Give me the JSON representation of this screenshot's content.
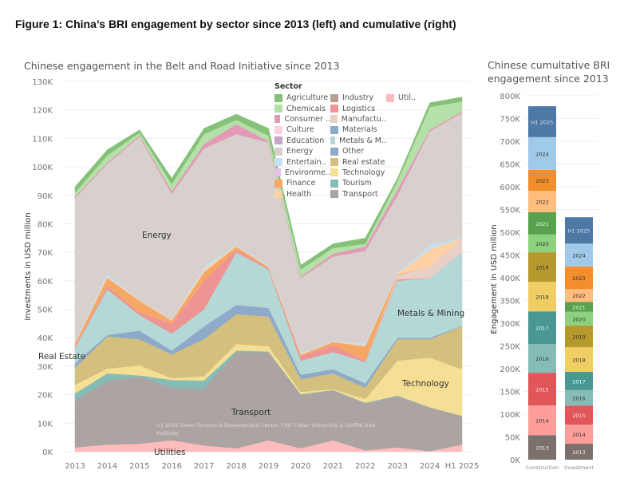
{
  "figure_title": "Figure 1: China’s BRI engagement by sector since 2013 (left) and cumulative (right)",
  "chart_data": [
    {
      "type": "area",
      "title": "Chinese engagement in the Belt and Road Initiative since 2013",
      "ylabel": "Investments in USD million",
      "xlabel": "",
      "x": [
        "2013",
        "2014",
        "2015",
        "2016",
        "2017",
        "2018",
        "2019",
        "2020",
        "2021",
        "2022",
        "2023",
        "2024",
        "H1 2025"
      ],
      "yticks": [
        "0K",
        "10K",
        "20K",
        "30K",
        "40K",
        "50K",
        "60K",
        "70K",
        "80K",
        "90K",
        "100K",
        "110K",
        "120K",
        "130K"
      ],
      "ylim": [
        0,
        130
      ],
      "unit": "thousand USD million",
      "legend_title": "Sector",
      "legend_position": "top-right",
      "series": [
        {
          "name": "Utilities",
          "color": "#ffbcbc",
          "values": [
            1.5,
            2.5,
            2.8,
            4,
            2.2,
            1.2,
            4,
            1.2,
            4,
            0.5,
            1.5,
            0.2,
            2.5
          ]
        },
        {
          "name": "Transport",
          "color": "#aba4a2",
          "values": [
            16.5,
            22.3,
            23.7,
            18.5,
            19.8,
            33.8,
            31,
            18.8,
            17.5,
            16.5,
            18,
            15.3,
            10
          ]
        },
        {
          "name": "Tourism",
          "color": "#86bcb6",
          "values": [
            2.5,
            2.7,
            0.3,
            2.7,
            3,
            0.5,
            0.2,
            0.2,
            0.2,
            0.2,
            0.2,
            0.1,
            0.1
          ]
        },
        {
          "name": "Technology",
          "color": "#f5df95",
          "values": [
            3,
            1.7,
            3.5,
            0.6,
            1.5,
            2.3,
            1.8,
            0.8,
            0.3,
            1.3,
            12.3,
            17.4,
            16.4
          ]
        },
        {
          "name": "Real estate",
          "color": "#d4c07e",
          "values": [
            6,
            11.3,
            9.2,
            8.4,
            13,
            10.5,
            10.5,
            4.5,
            5.5,
            4,
            7.5,
            6.5,
            15
          ]
        },
        {
          "name": "Other",
          "color": "#8fa9cb",
          "values": [
            1.5,
            0.5,
            3,
            1.3,
            4.5,
            3.2,
            3,
            1.5,
            1.5,
            1.5,
            0.5,
            0.5,
            0.2
          ]
        },
        {
          "name": "Metals & Mining",
          "color": "#b4d8d5",
          "values": [
            5.5,
            16,
            5.5,
            6,
            6,
            18.5,
            13.5,
            5,
            6,
            7.5,
            20,
            21,
            25.8
          ]
        },
        {
          "name": "Logistics",
          "color": "#ee9494",
          "values": [
            0.5,
            1,
            1,
            3.5,
            10,
            1,
            0.5,
            1.5,
            2.5,
            0.5,
            0.5,
            0,
            0
          ]
        },
        {
          "name": "Manufacturing",
          "color": "#e8d0c7",
          "values": [
            0,
            0,
            0,
            0,
            0,
            0,
            0,
            0,
            0,
            0,
            1.5,
            4,
            5
          ]
        },
        {
          "name": "Finance",
          "color": "#f5a866",
          "values": [
            1,
            3,
            4,
            1,
            3,
            1,
            0.3,
            0.5,
            1,
            5,
            0.2,
            0,
            0
          ]
        },
        {
          "name": "Health",
          "color": "#ffd1a4",
          "values": [
            0.2,
            0.5,
            0.3,
            0.3,
            1,
            0.3,
            0.2,
            0.2,
            0.2,
            0.3,
            0.3,
            6,
            0
          ]
        },
        {
          "name": "Entertainment",
          "color": "#c6dff2",
          "values": [
            0.3,
            1,
            0.2,
            0.2,
            1,
            0.2,
            0.3,
            0.3,
            0.3,
            0.7,
            0.5,
            1.5,
            0.5
          ]
        },
        {
          "name": "Energy",
          "color": "#d7d0cd",
          "values": [
            50.5,
            38.5,
            57,
            44,
            41.5,
            39,
            43.2,
            26.5,
            29.5,
            32.5,
            27,
            40,
            43.5
          ]
        },
        {
          "name": "Consumer",
          "color": "#e39ab8",
          "values": [
            0.5,
            0.5,
            0.5,
            1,
            1.5,
            3.5,
            0.5,
            0.5,
            1,
            1.5,
            2,
            0.5,
            0.5
          ]
        },
        {
          "name": "Chemicals",
          "color": "#b5e0a8",
          "values": [
            1.5,
            2.5,
            1,
            2.5,
            3.5,
            1.5,
            2,
            2.5,
            2,
            1,
            3,
            8,
            3.5
          ]
        },
        {
          "name": "Agriculture",
          "color": "#86c17a",
          "values": [
            2,
            2,
            1,
            2,
            2,
            2,
            2.5,
            1.5,
            1.5,
            2,
            1,
            1.5,
            1.5
          ]
        }
      ],
      "legend": [
        {
          "name": "Agriculture",
          "color": "#86c17a"
        },
        {
          "name": "Chemicals",
          "color": "#b5e0a8"
        },
        {
          "name": "Consumer ..",
          "color": "#e39ab8"
        },
        {
          "name": "Culture",
          "color": "#fbd0df"
        },
        {
          "name": "Education",
          "color": "#c9a6c8"
        },
        {
          "name": "Energy",
          "color": "#d7d0cd"
        },
        {
          "name": "Entertain..",
          "color": "#c6dff2"
        },
        {
          "name": "Environme..",
          "color": "#e8c2e5"
        },
        {
          "name": "Finance",
          "color": "#f5a866"
        },
        {
          "name": "Health",
          "color": "#ffd1a4"
        },
        {
          "name": "Industry",
          "color": "#bba094"
        },
        {
          "name": "Logistics",
          "color": "#ee9494"
        },
        {
          "name": "Manufactu..",
          "color": "#e8d0c7"
        },
        {
          "name": "Materials",
          "color": "#8fa9cb"
        },
        {
          "name": "Metals & M..",
          "color": "#b4d8d5"
        },
        {
          "name": "Other",
          "color": "#8fa9cb"
        },
        {
          "name": "Real estate",
          "color": "#d4c07e"
        },
        {
          "name": "Technology",
          "color": "#f5df95"
        },
        {
          "name": "Tourism",
          "color": "#86bcb6"
        },
        {
          "name": "Transport",
          "color": "#aba4a2"
        },
        {
          "name": "Util..",
          "color": "#ffbcbc"
        }
      ],
      "annotations": {
        "energy": "Energy",
        "real_estate": "Real Estate",
        "transport": "Transport",
        "utilities": "Utilities",
        "metals": "Metals & Mining",
        "technology": "Technology",
        "credit_line1": "(c) 2025 Green Finance & Development Center, FISF Fudan University &  Griffith Asia",
        "credit_line2": "Institute"
      }
    },
    {
      "type": "bar",
      "stacked": true,
      "title_line1": "Chinese cumultative BRI",
      "title_line2": "engagement since 2013",
      "ylabel": "Engagement in USD million",
      "categories": [
        "Construction",
        "Investment"
      ],
      "ylim": [
        0,
        800
      ],
      "yticks": [
        "0K",
        "50K",
        "100K",
        "150K",
        "200K",
        "250K",
        "300K",
        "350K",
        "400K",
        "450K",
        "500K",
        "550K",
        "600K",
        "650K",
        "700K",
        "750K",
        "800K"
      ],
      "series": [
        {
          "name": "2013",
          "color": "#7b706c",
          "text": "#eee",
          "values": [
            54,
            35
          ]
        },
        {
          "name": "2014",
          "color": "#ff9d9a",
          "text": "#333",
          "values": [
            65,
            42
          ]
        },
        {
          "name": "2015",
          "color": "#e15759",
          "text": "#fde",
          "values": [
            72,
            42
          ]
        },
        {
          "name": "2016",
          "color": "#86bcb6",
          "text": "#333",
          "values": [
            63,
            34
          ]
        },
        {
          "name": "2017",
          "color": "#499894",
          "text": "#dff",
          "values": [
            72,
            40
          ]
        },
        {
          "name": "2018",
          "color": "#f1ce63",
          "text": "#333",
          "values": [
            65,
            54
          ]
        },
        {
          "name": "2019",
          "color": "#b6992d",
          "text": "#333",
          "values": [
            65,
            48
          ]
        },
        {
          "name": "2020",
          "color": "#8cd17d",
          "text": "#333",
          "values": [
            39,
            30
          ]
        },
        {
          "name": "2021",
          "color": "#59a14f",
          "text": "#dfd",
          "values": [
            49,
            22
          ]
        },
        {
          "name": "2022",
          "color": "#ffbe7d",
          "text": "#333",
          "values": [
            47,
            28
          ]
        },
        {
          "name": "2023",
          "color": "#f28e2b",
          "text": "#333",
          "values": [
            46,
            50
          ]
        },
        {
          "name": "2024",
          "color": "#a0cbe8",
          "text": "#333",
          "values": [
            72,
            50
          ]
        },
        {
          "name": "H1 2025",
          "color": "#4e79a7",
          "text": "#dde",
          "values": [
            68,
            58
          ]
        }
      ]
    }
  ]
}
